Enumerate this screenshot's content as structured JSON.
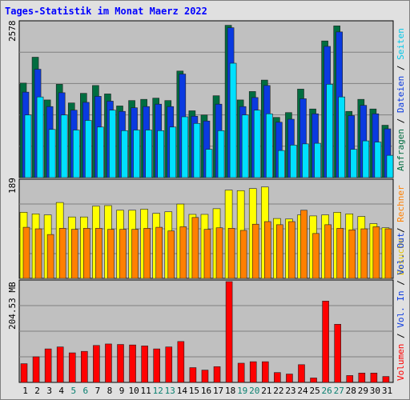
{
  "title": "Tages-Statistik im Monat Maerz 2022",
  "colors": {
    "background": "#e0e0e0",
    "plot": "#c0c0c0",
    "title": "#0000ff",
    "anfragen": "#006d40",
    "dateien": "#0a3ae0",
    "seiten": "#00e0ff",
    "besuche": "#ffff00",
    "rechner": "#ff8000",
    "volumen": "#ff0000",
    "weekend_day": "#0a8070",
    "weekday": "#000000"
  },
  "chart_data": [
    {
      "type": "bar",
      "title": "Tages-Statistik im Monat Maerz 2022",
      "categories": [
        "1",
        "2",
        "3",
        "4",
        "5",
        "6",
        "7",
        "8",
        "9",
        "10",
        "11",
        "12",
        "13",
        "14",
        "15",
        "16",
        "17",
        "18",
        "19",
        "20",
        "21",
        "22",
        "23",
        "24",
        "25",
        "26",
        "27",
        "28",
        "29",
        "30",
        "31"
      ],
      "weekend_days": [
        "5",
        "6",
        "12",
        "13",
        "19",
        "20",
        "26",
        "27"
      ],
      "ymax_label": "2578",
      "ylim": [
        0,
        2578
      ],
      "grid": true,
      "series": [
        {
          "name": "Anfragen",
          "values": [
            1570,
            2000,
            1290,
            1550,
            1240,
            1400,
            1530,
            1390,
            1190,
            1280,
            1300,
            1320,
            1280,
            1770,
            1110,
            1040,
            1360,
            2530,
            1290,
            1430,
            1620,
            1000,
            1080,
            1470,
            1140,
            2270,
            2520,
            1100,
            1300,
            1140,
            870
          ]
        },
        {
          "name": "Dateien",
          "values": [
            1420,
            1800,
            1180,
            1410,
            1120,
            1250,
            1350,
            1270,
            1100,
            1160,
            1180,
            1220,
            1180,
            1720,
            1020,
            940,
            1220,
            2490,
            1180,
            1330,
            1530,
            920,
            970,
            1310,
            1060,
            2180,
            2420,
            1030,
            1200,
            1060,
            810
          ]
        },
        {
          "name": "Seiten",
          "values": [
            1040,
            1340,
            800,
            1040,
            790,
            950,
            840,
            1120,
            780,
            790,
            790,
            780,
            840,
            1010,
            900,
            470,
            780,
            1900,
            1040,
            1120,
            1060,
            450,
            540,
            560,
            570,
            1550,
            1340,
            470,
            610,
            590,
            370
          ]
        },
        {
          "name": "Besuche",
          "values": [
            128,
            125,
            123,
            147,
            119,
            119,
            140,
            141,
            132,
            132,
            134,
            126,
            129,
            144,
            124,
            124,
            135,
            171,
            170,
            174,
            177,
            116,
            115,
            123,
            121,
            123,
            128,
            125,
            120,
            106,
            98
          ]
        },
        {
          "name": "Rechner",
          "values": [
            99,
            96,
            85,
            97,
            95,
            97,
            97,
            95,
            95,
            95,
            97,
            99,
            92,
            100,
            118,
            95,
            98,
            97,
            93,
            105,
            110,
            104,
            110,
            132,
            87,
            104,
            97,
            94,
            96,
            100,
            96
          ]
        },
        {
          "name": "Volumen",
          "values": [
            38,
            52,
            68,
            72,
            60,
            63,
            75,
            78,
            77,
            76,
            74,
            68,
            72,
            83,
            30,
            25,
            32,
            204.53,
            39,
            42,
            42,
            20,
            17,
            36,
            9,
            165,
            118,
            14,
            19,
            19,
            12
          ]
        }
      ]
    }
  ],
  "legend": {
    "anfragen": "Anfragen",
    "dateien": "Dateien",
    "seiten": "Seiten",
    "besuche": "Besuche",
    "rechner": "Rechner",
    "vol_out": "Vol. Out",
    "vol_in": "Vol. In",
    "volumen": "Volumen",
    "sep": "/"
  },
  "axis": {
    "top_max": "2578",
    "mid_max": "189",
    "bottom_max": "204.53 MB"
  }
}
